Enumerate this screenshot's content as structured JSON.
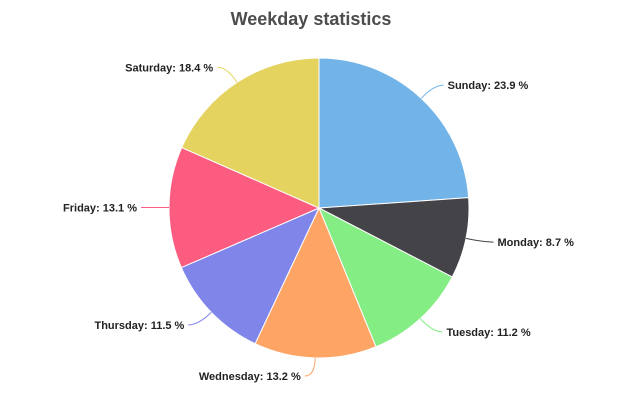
{
  "chart_data": {
    "type": "pie",
    "title": "Weekday statistics",
    "unit": "%",
    "slices": [
      {
        "label": "Sunday",
        "value": 23.9,
        "color": "#73b4e8"
      },
      {
        "label": "Monday",
        "value": 8.7,
        "color": "#434348"
      },
      {
        "label": "Tuesday",
        "value": 11.2,
        "color": "#84ed84"
      },
      {
        "label": "Wednesday",
        "value": 13.2,
        "color": "#fea465"
      },
      {
        "label": "Thursday",
        "value": 11.5,
        "color": "#8085e9"
      },
      {
        "label": "Friday",
        "value": 13.1,
        "color": "#fc5c80"
      },
      {
        "label": "Saturday",
        "value": 18.4,
        "color": "#e5d35f"
      }
    ],
    "start_angle": "12 o'clock",
    "direction": "clockwise",
    "legend": "none"
  }
}
